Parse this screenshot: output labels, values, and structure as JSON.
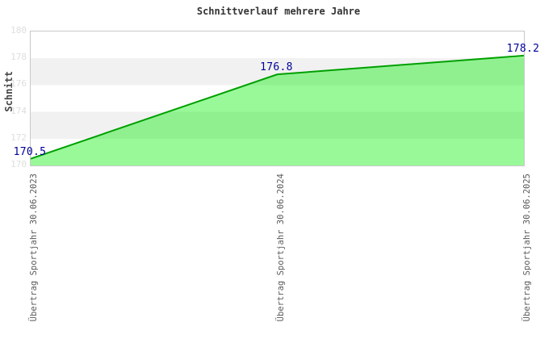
{
  "title": "Schnittverlauf mehrere Jahre",
  "chart_data": {
    "type": "area",
    "title": "Schnittverlauf mehrere Jahre",
    "xlabel": "",
    "ylabel": "Schnitt",
    "categories": [
      "Übertrag Sportjahr 30.06.2023",
      "Übertrag Sportjahr 30.06.2024",
      "Übertrag Sportjahr 30.06.2025"
    ],
    "values": [
      170.5,
      176.8,
      178.2
    ],
    "data_labels": [
      "170.5",
      "176.8",
      "178.2"
    ],
    "ylim": [
      170,
      180
    ],
    "yticks": [
      180,
      178,
      176,
      174,
      172,
      170
    ],
    "grid": "alternating-horizontal-bands",
    "legend": "none",
    "colors": {
      "line": "#00a000",
      "fill": "rgba(0,240,0,0.40)",
      "band": "#f1f1f1",
      "plot_border": "#c9c9c9",
      "title": "#333333",
      "y_axis_title": "#444444",
      "y_tick": "#dedede",
      "x_tick": "#5a5a5a",
      "data_label": "#000099"
    }
  }
}
